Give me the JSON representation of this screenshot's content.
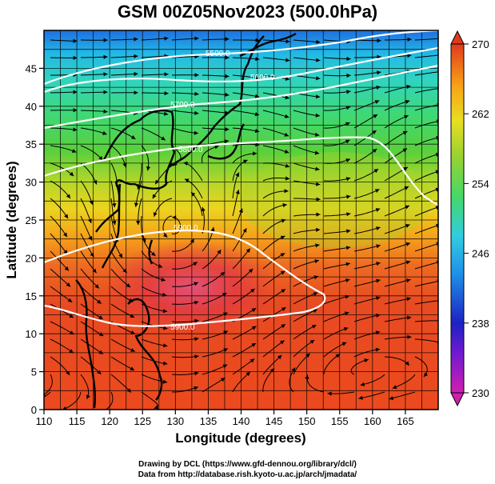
{
  "title": "GSM 00Z05Nov2023 (500.0hPa)",
  "xlabel": "Longitude (degrees)",
  "ylabel": "Latitude  (degrees)",
  "credits": [
    "Drawing by DCL (https://www.gfd-dennou.org/library/dcl/)",
    "Data from http://database.rish.kyoto-u.ac.jp/arch/jmadata/"
  ],
  "map": {
    "lon_range": [
      110,
      170
    ],
    "lat_range": [
      0,
      50
    ],
    "lon_ticks": [
      "110",
      "115",
      "120",
      "125",
      "130",
      "135",
      "140",
      "145",
      "150",
      "155",
      "160",
      "165"
    ],
    "lat_ticks": [
      "0",
      "5",
      "10",
      "15",
      "20",
      "25",
      "30",
      "35",
      "40",
      "45"
    ],
    "gridlines": true,
    "field": "temperature (K), shaded",
    "overlay": "wind streamlines (black)",
    "contour_labels": [
      "5500.0",
      "5600.0",
      "5700.0",
      "5800.0",
      "5900.0",
      "5900.0"
    ]
  },
  "colorbar": {
    "ticks": [
      "270",
      "262",
      "254",
      "246",
      "238",
      "230"
    ],
    "min": 230,
    "max": 270,
    "colors": [
      "#d11fb0",
      "#1c22c2",
      "#1f8fe8",
      "#33cce0",
      "#44d86a",
      "#9ad230",
      "#e8de22",
      "#f7a316",
      "#ee5522",
      "#e03a1d"
    ]
  }
}
